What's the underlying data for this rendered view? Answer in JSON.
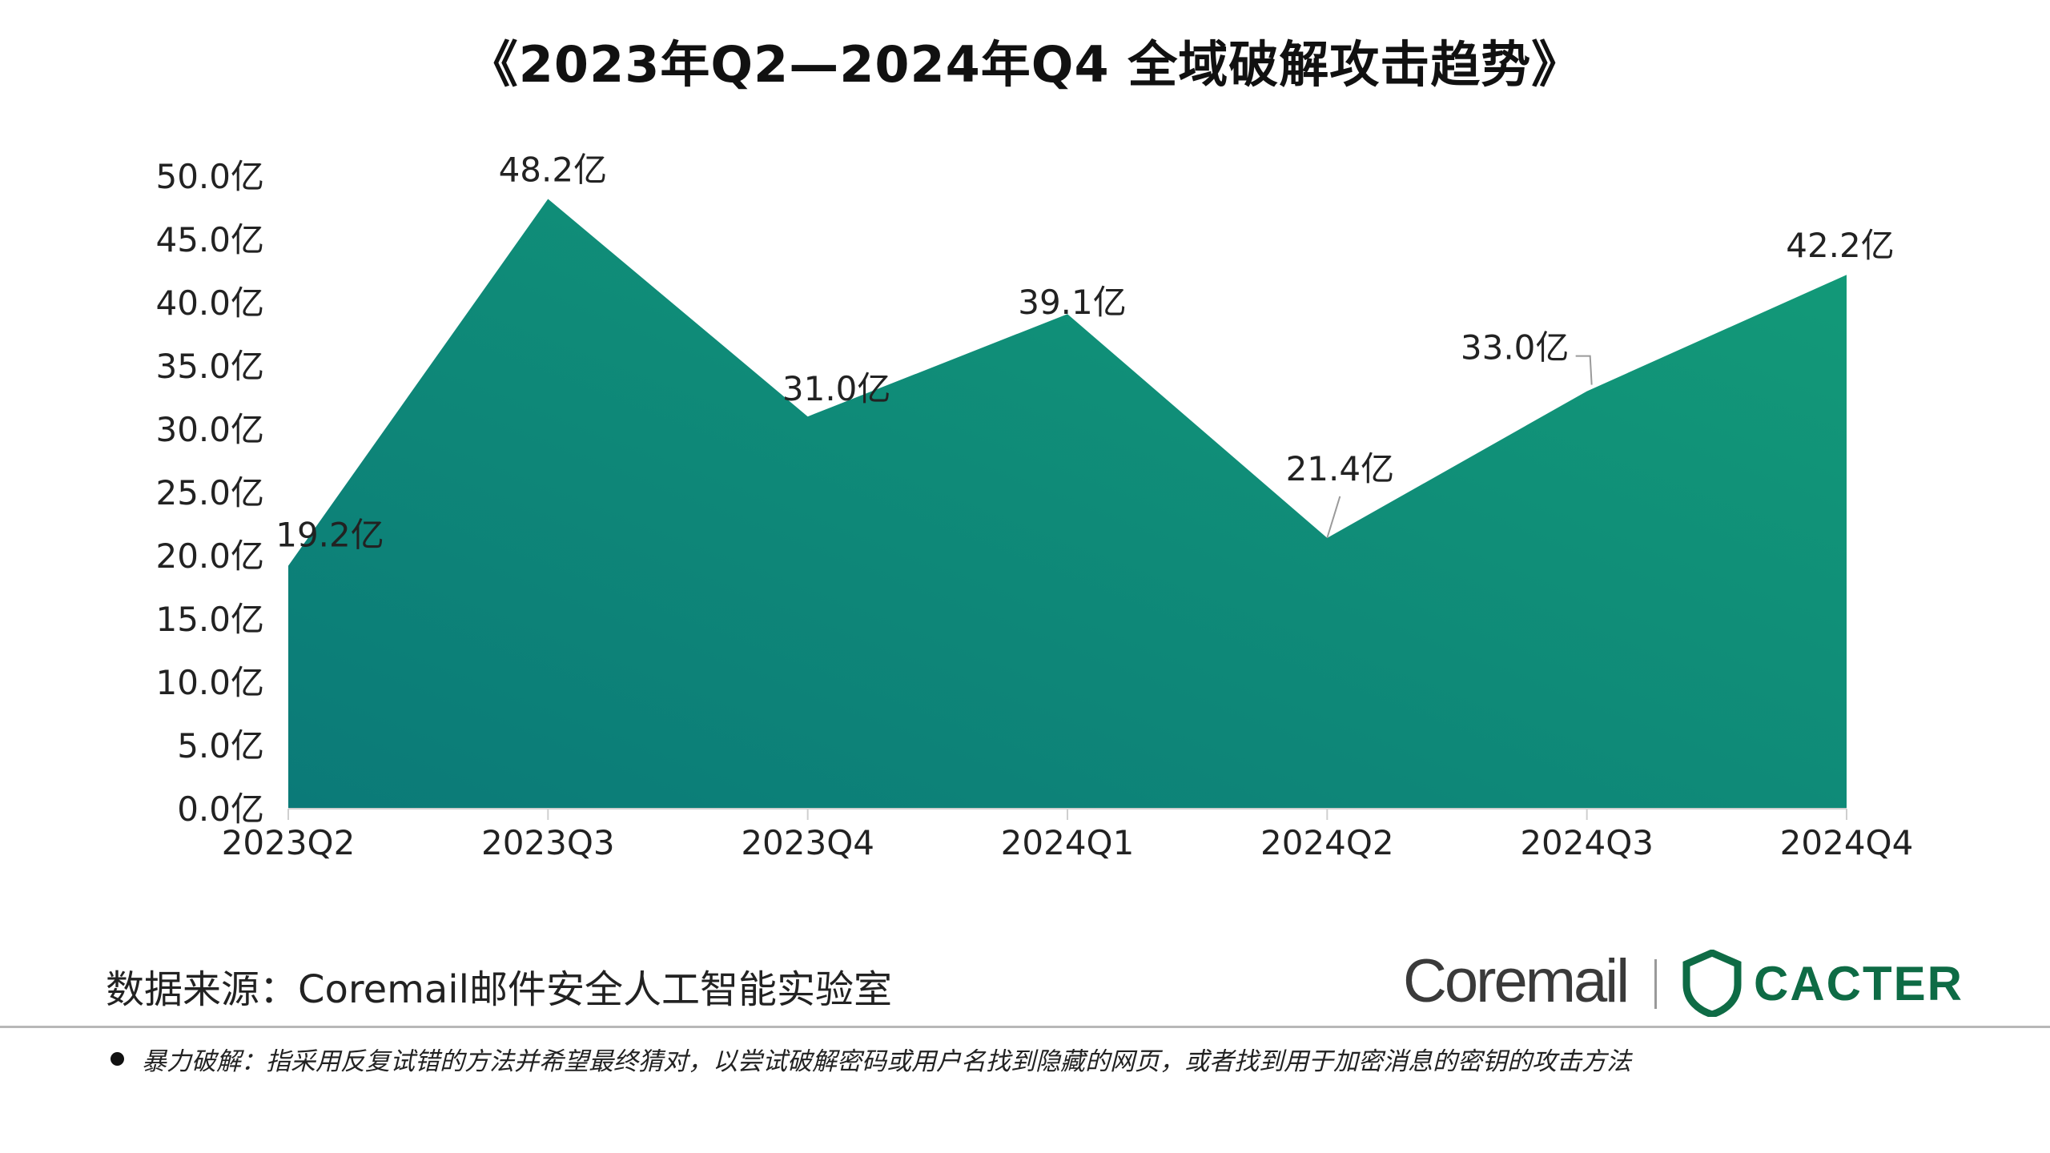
{
  "page": {
    "source": "数据来源：Coremail邮件安全人工智能实验室",
    "footnote": "暴力破解：指采用反复试错的方法并希望最终猜对，以尝试破解密码或用户名找到隐藏的网页，或者找到用于加密消息的密钥的攻击方法",
    "logos": {
      "coremail": "Coremail",
      "cacter": "CACTER"
    }
  },
  "colors": {
    "area_start": "#0b7a78",
    "area_end": "#139b78",
    "brand_green": "#0e6b45"
  },
  "chart_data": {
    "type": "area",
    "title": "《2023年Q2—2024年Q4  全域破解攻击趋势》",
    "categories": [
      "2023Q2",
      "2023Q3",
      "2023Q4",
      "2024Q1",
      "2024Q2",
      "2024Q3",
      "2024Q4"
    ],
    "values": [
      19.2,
      48.2,
      31.0,
      39.1,
      21.4,
      33.0,
      42.2
    ],
    "data_labels": [
      "19.2亿",
      "48.2亿",
      "31.0亿",
      "39.1亿",
      "21.4亿",
      "33.0亿",
      "42.2亿"
    ],
    "unit": "亿",
    "ylim": [
      0,
      50
    ],
    "yticks": [
      0,
      5,
      10,
      15,
      20,
      25,
      30,
      35,
      40,
      45,
      50
    ],
    "ytick_labels": [
      "0.0亿",
      "5.0亿",
      "10.0亿",
      "15.0亿",
      "20.0亿",
      "25.0亿",
      "30.0亿",
      "35.0亿",
      "40.0亿",
      "45.0亿",
      "50.0亿"
    ],
    "grid": false,
    "legend": "none"
  }
}
